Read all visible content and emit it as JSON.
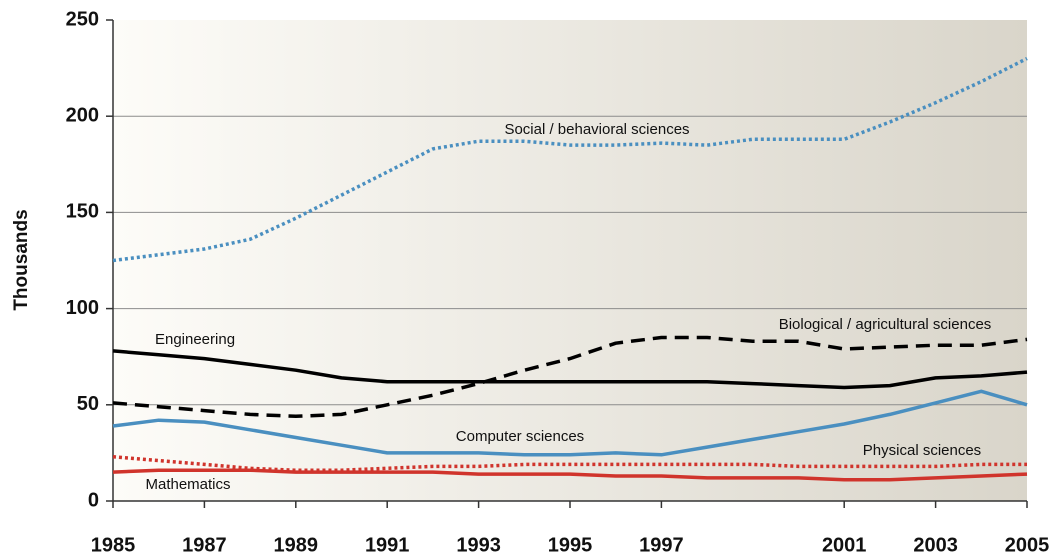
{
  "chart_data": {
    "type": "line",
    "y_label": "Thousands",
    "x": [
      1985,
      1986,
      1987,
      1988,
      1989,
      1990,
      1991,
      1992,
      1993,
      1994,
      1995,
      1996,
      1997,
      1998,
      1999,
      2000,
      2001,
      2002,
      2003,
      2004,
      2005
    ],
    "xlim": [
      1985,
      2005
    ],
    "xticks": [
      1985,
      1987,
      1989,
      1991,
      1993,
      1995,
      1997,
      2001,
      2003,
      2005
    ],
    "ylim": [
      0,
      250
    ],
    "yticks": [
      0,
      50,
      100,
      150,
      200,
      250
    ],
    "grid": true,
    "series": [
      {
        "name": "Social / behavioral sciences",
        "color": "#4a8fc0",
        "style": "dotted",
        "values": [
          125,
          128,
          131,
          136,
          147,
          159,
          171,
          183,
          187,
          187,
          185,
          185,
          186,
          185,
          188,
          188,
          188,
          197,
          207,
          218,
          230
        ]
      },
      {
        "name": "Engineering",
        "color": "#000000",
        "style": "solid",
        "values": [
          78,
          76,
          74,
          71,
          68,
          64,
          62,
          62,
          62,
          62,
          62,
          62,
          62,
          62,
          61,
          60,
          59,
          60,
          64,
          65,
          67
        ]
      },
      {
        "name": "Biological / agricultural sciences",
        "color": "#000000",
        "style": "dashed",
        "values": [
          51,
          49,
          47,
          45,
          44,
          45,
          50,
          55,
          61,
          68,
          74,
          82,
          85,
          85,
          83,
          83,
          79,
          80,
          81,
          81,
          84
        ]
      },
      {
        "name": "Computer sciences",
        "color": "#4a8fc0",
        "style": "solid",
        "values": [
          39,
          42,
          41,
          37,
          33,
          29,
          25,
          25,
          25,
          24,
          24,
          25,
          24,
          28,
          32,
          36,
          40,
          45,
          51,
          57,
          50
        ]
      },
      {
        "name": "Physical sciences",
        "color": "#d0342c",
        "style": "dotted",
        "values": [
          23,
          21,
          19,
          17,
          16,
          16,
          17,
          18,
          18,
          19,
          19,
          19,
          19,
          19,
          19,
          18,
          18,
          18,
          18,
          19,
          19
        ]
      },
      {
        "name": "Mathematics",
        "color": "#d0342c",
        "style": "solid",
        "values": [
          15,
          16,
          16,
          16,
          15,
          15,
          15,
          15,
          14,
          14,
          14,
          13,
          13,
          12,
          12,
          12,
          11,
          11,
          12,
          13,
          14
        ]
      }
    ]
  }
}
